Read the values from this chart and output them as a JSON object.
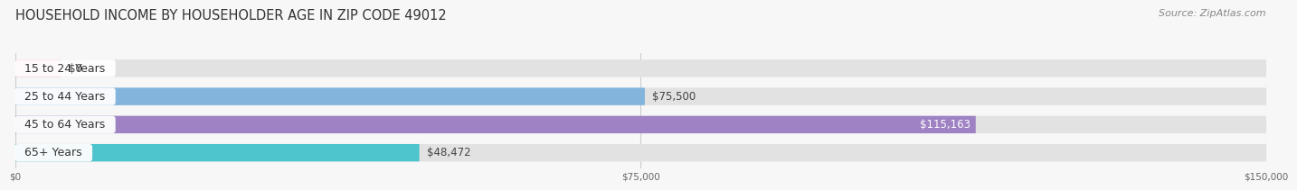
{
  "title": "HOUSEHOLD INCOME BY HOUSEHOLDER AGE IN ZIP CODE 49012",
  "source": "Source: ZipAtlas.com",
  "categories": [
    "15 to 24 Years",
    "25 to 44 Years",
    "45 to 64 Years",
    "65+ Years"
  ],
  "values": [
    0,
    75500,
    115163,
    48472
  ],
  "bar_colors": [
    "#f0a0aa",
    "#82b4dc",
    "#9e82c4",
    "#4ec4cc"
  ],
  "value_labels": [
    "$0",
    "$75,500",
    "$115,163",
    "$48,472"
  ],
  "value_inside": [
    false,
    false,
    true,
    false
  ],
  "xlim": [
    0,
    150000
  ],
  "xticks": [
    0,
    75000,
    150000
  ],
  "xtick_labels": [
    "$0",
    "$75,000",
    "$150,000"
  ],
  "background_color": "#f7f7f7",
  "bar_bg_color": "#e2e2e2",
  "title_fontsize": 10.5,
  "source_fontsize": 8,
  "label_fontsize": 9,
  "value_fontsize": 8.5,
  "zero_bar_width": 5500
}
